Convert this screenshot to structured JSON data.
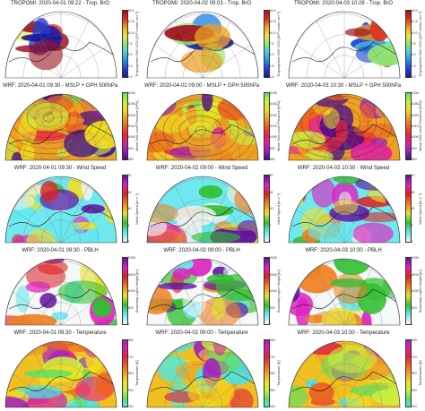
{
  "figure": {
    "rows": [
      {
        "row_name": "tropomi-bro",
        "cmap": [
          "#1a1aa0",
          "#1f3fd8",
          "#2a8fe8",
          "#44d0e0",
          "#8ee870",
          "#e8e840",
          "#f0a020",
          "#e03020",
          "#a01020"
        ],
        "background": "#ffffff",
        "colorbar": {
          "ticks": [
            "15.0",
            "12.5",
            "10.0",
            "7.5",
            "5.0",
            "2.5",
            "0.0"
          ],
          "label": "Tropospheric BrO VCD [10¹³ molec cm⁻²]"
        },
        "panels": [
          {
            "title": "TROPOMI: 2020-04-01 09:22 - Trop. BrO"
          },
          {
            "title": "TROPOMI: 2020-04-02 09:03 - Trop. BrO"
          },
          {
            "title": "TROPOMI: 2020-04-03 10:28 - Trop. BrO"
          }
        ]
      },
      {
        "row_name": "wrf-mslp",
        "cmap": [
          "#4a0a8a",
          "#9a20c0",
          "#e020a0",
          "#f02040",
          "#f06020",
          "#f0a020",
          "#f0e020",
          "#c8f040",
          "#60e060"
        ],
        "background": "#f0a020",
        "colorbar": {
          "ticks": [
            "1040",
            "1030",
            "1020",
            "1010",
            "1000",
            "990",
            "980"
          ],
          "label": "Mean Sea Level Pressure [hPa]"
        },
        "panels": [
          {
            "title": "WRF: 2020-04-01 09:30 - MSLP + GPH 500hPa"
          },
          {
            "title": "WRF: 2020-04-02 09:00 - MSLP + GPH 500hPa"
          },
          {
            "title": "WRF: 2020-04-03 10:30 - MSLP + GPH 500hPa"
          }
        ]
      },
      {
        "row_name": "wrf-wind-speed",
        "cmap": [
          "#f0f0f0",
          "#60e8f0",
          "#30c030",
          "#e8e030",
          "#f08020",
          "#e02020",
          "#e020c0",
          "#6010a0"
        ],
        "background": "#70e8f0",
        "colorbar": {
          "ticks": [
            "20",
            "15",
            "10",
            "5",
            "0"
          ],
          "label": "Wind Speed [m s⁻¹]"
        },
        "panels": [
          {
            "title": "WRF: 2020-04-01 09:30 - Wind Speed"
          },
          {
            "title": "WRF: 2020-04-02 09:00 - Wind Speed"
          },
          {
            "title": "WRF: 2020-04-03 10:30 - Wind Speed"
          }
        ]
      },
      {
        "row_name": "wrf-pblh",
        "cmap": [
          "#f8f8f8",
          "#70e8f0",
          "#30c030",
          "#e8e030",
          "#f08020",
          "#e02020",
          "#e020c0",
          "#6010a0"
        ],
        "background": "#f4f8f8",
        "colorbar": {
          "ticks": [
            "2000",
            "1500",
            "1000",
            "500",
            "0"
          ],
          "label": "Boundary Layer Height [m]"
        },
        "panels": [
          {
            "title": "WRF: 2020-04-01 09:30 - PBLH"
          },
          {
            "title": "WRF: 2020-04-02 09:00 - PBLH"
          },
          {
            "title": "WRF: 2020-04-03 10:30 - PBLH"
          }
        ]
      },
      {
        "row_name": "wrf-temperature",
        "cmap": [
          "#40e8f0",
          "#60e060",
          "#c8f040",
          "#f0e020",
          "#f0a020",
          "#f06020",
          "#e02040",
          "#e020a0",
          "#a020c0"
        ],
        "background": "#f0c020",
        "colorbar": {
          "ticks": [
            "280",
            "270",
            "260",
            "250",
            "240"
          ],
          "label": "Temperature [K]"
        },
        "panels": [
          {
            "title": "WRF: 2020-04-01 09:30 - Temperature"
          },
          {
            "title": "WRF: 2020-04-02 09:00 - Temperature"
          },
          {
            "title": "WRF: 2020-04-03 10:30 - Temperature"
          }
        ]
      }
    ]
  }
}
